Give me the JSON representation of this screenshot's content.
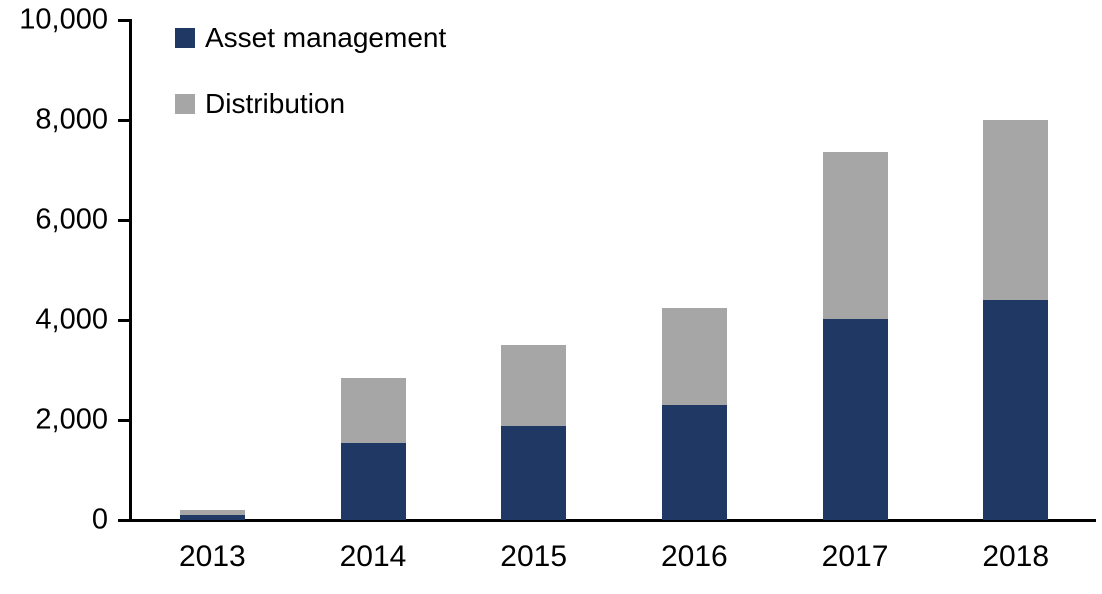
{
  "chart_data": {
    "type": "bar",
    "stacked": true,
    "title": "",
    "xlabel": "",
    "ylabel": "",
    "categories": [
      "2013",
      "2014",
      "2015",
      "2016",
      "2017",
      "2018"
    ],
    "series": [
      {
        "name": "Asset management",
        "color": "#1f3864",
        "values": [
          100,
          1540,
          1880,
          2300,
          4030,
          4400
        ]
      },
      {
        "name": "Distribution",
        "color": "#a6a6a6",
        "values": [
          100,
          1300,
          1620,
          1940,
          3340,
          3600
        ]
      }
    ],
    "totals": [
      200,
      2840,
      3500,
      4240,
      7370,
      8000
    ],
    "ylim": [
      0,
      10000
    ],
    "yticks": [
      {
        "value": 0,
        "label": "0"
      },
      {
        "value": 2000,
        "label": "2,000"
      },
      {
        "value": 4000,
        "label": "4,000"
      },
      {
        "value": 6000,
        "label": "6,000"
      },
      {
        "value": 8000,
        "label": "8,000"
      },
      {
        "value": 10000,
        "label": "10,000"
      }
    ],
    "grid": false,
    "legend_position": "top-left-inside",
    "axis_color": "#000000",
    "text_color": "#000000",
    "background": "#ffffff"
  }
}
